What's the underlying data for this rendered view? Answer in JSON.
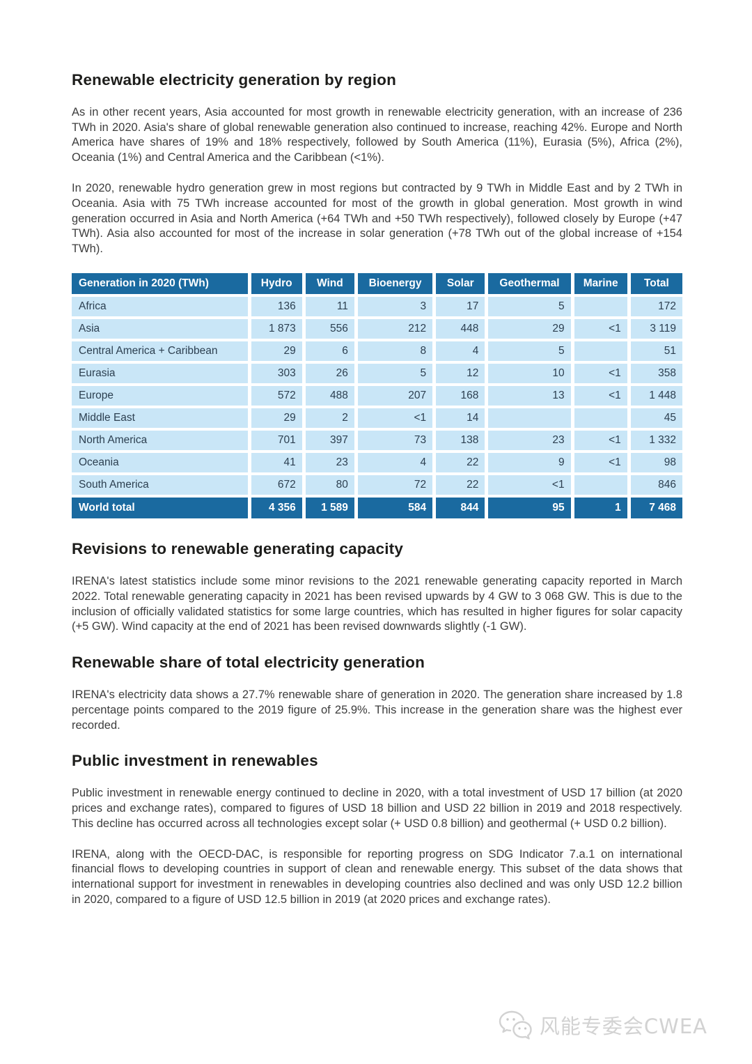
{
  "sections": {
    "region": {
      "heading": "Renewable electricity generation by region",
      "para1": "As in other recent years, Asia accounted for most growth in renewable electricity generation, with an increase of 236 TWh in 2020. Asia's share of global renewable generation also continued to increase, reaching 42%. Europe and North America have shares of 19% and 18% respectively, followed by South America (11%), Eurasia (5%), Africa (2%), Oceania (1%) and Central America and the Caribbean (<1%).",
      "para2": "In 2020, renewable hydro generation grew in most regions but contracted by 9 TWh in Middle East and by 2 TWh in Oceania. Asia with 75 TWh increase accounted for most of the growth in global generation. Most growth in wind generation occurred in Asia and North America (+64 TWh and +50 TWh respectively), followed closely by Europe (+47 TWh). Asia also accounted for most of the increase in solar generation (+78 TWh out of the global increase of +154 TWh)."
    },
    "revisions": {
      "heading": "Revisions to renewable generating capacity",
      "para1": "IRENA's latest statistics include some minor revisions to the 2021 renewable generating capacity reported in March 2022. Total renewable generating capacity in 2021 has been revised upwards by 4 GW to 3 068 GW. This is due to the inclusion of officially validated statistics for some large countries, which has resulted in higher figures for solar capacity (+5 GW). Wind capacity at the end of 2021 has been revised downwards slightly (-1 GW)."
    },
    "share": {
      "heading": "Renewable share of total electricity generation",
      "para1": "IRENA's electricity data shows a 27.7% renewable share of generation in 2020. The generation share increased by 1.8 percentage points compared to the 2019 figure of 25.9%. This increase in the generation share was the highest ever recorded."
    },
    "investment": {
      "heading": "Public investment in renewables",
      "para1": "Public investment in renewable energy continued to decline in 2020, with a total investment of USD 17 billion (at 2020 prices and exchange rates), compared to figures of USD 18 billion and USD 22 billion in 2019 and 2018 respectively. This decline has occurred across all technologies except solar (+ USD 0.8 billion) and geothermal (+ USD 0.2 billion).",
      "para2": "IRENA, along with the OECD-DAC, is responsible for reporting progress on SDG Indicator 7.a.1 on international financial flows to developing countries in support of clean and renewable energy. This subset of the data shows that international support for investment in renewables in developing countries also declined and was only USD 12.2 billion in 2020, compared to a figure of USD 12.5 billion in 2019 (at 2020 prices and exchange rates)."
    }
  },
  "table": {
    "columns": [
      "Generation in 2020 (TWh)",
      "Hydro",
      "Wind",
      "Bioenergy",
      "Solar",
      "Geothermal",
      "Marine",
      "Total"
    ],
    "rows": [
      [
        "Africa",
        "136",
        "11",
        "3",
        "17",
        "5",
        "",
        "172"
      ],
      [
        "Asia",
        "1 873",
        "556",
        "212",
        "448",
        "29",
        "<1",
        "3 119"
      ],
      [
        "Central America + Caribbean",
        "29",
        "6",
        "8",
        "4",
        "5",
        "",
        "51"
      ],
      [
        "Eurasia",
        "303",
        "26",
        "5",
        "12",
        "10",
        "<1",
        "358"
      ],
      [
        "Europe",
        "572",
        "488",
        "207",
        "168",
        "13",
        "<1",
        "1 448"
      ],
      [
        "Middle East",
        "29",
        "2",
        "<1",
        "14",
        "",
        "",
        "45"
      ],
      [
        "North America",
        "701",
        "397",
        "73",
        "138",
        "23",
        "<1",
        "1 332"
      ],
      [
        "Oceania",
        "41",
        "23",
        "4",
        "22",
        "9",
        "<1",
        "98"
      ],
      [
        "South America",
        "672",
        "80",
        "72",
        "22",
        "<1",
        "",
        "846"
      ]
    ],
    "total_row": [
      "World total",
      "4 356",
      "1 589",
      "584",
      "844",
      "95",
      "1",
      "7 468"
    ]
  },
  "watermark": {
    "text": "风能专委会CWEA",
    "icon": "wechat-icon"
  },
  "colors": {
    "table_header_bg": "#1a6aa0",
    "table_row_bg": "#c9e6f7",
    "table_row_text": "#2c3f50",
    "body_text": "#3d3d3d",
    "heading_text": "#1d1d1b",
    "watermark_text": "#d2d2d2"
  }
}
